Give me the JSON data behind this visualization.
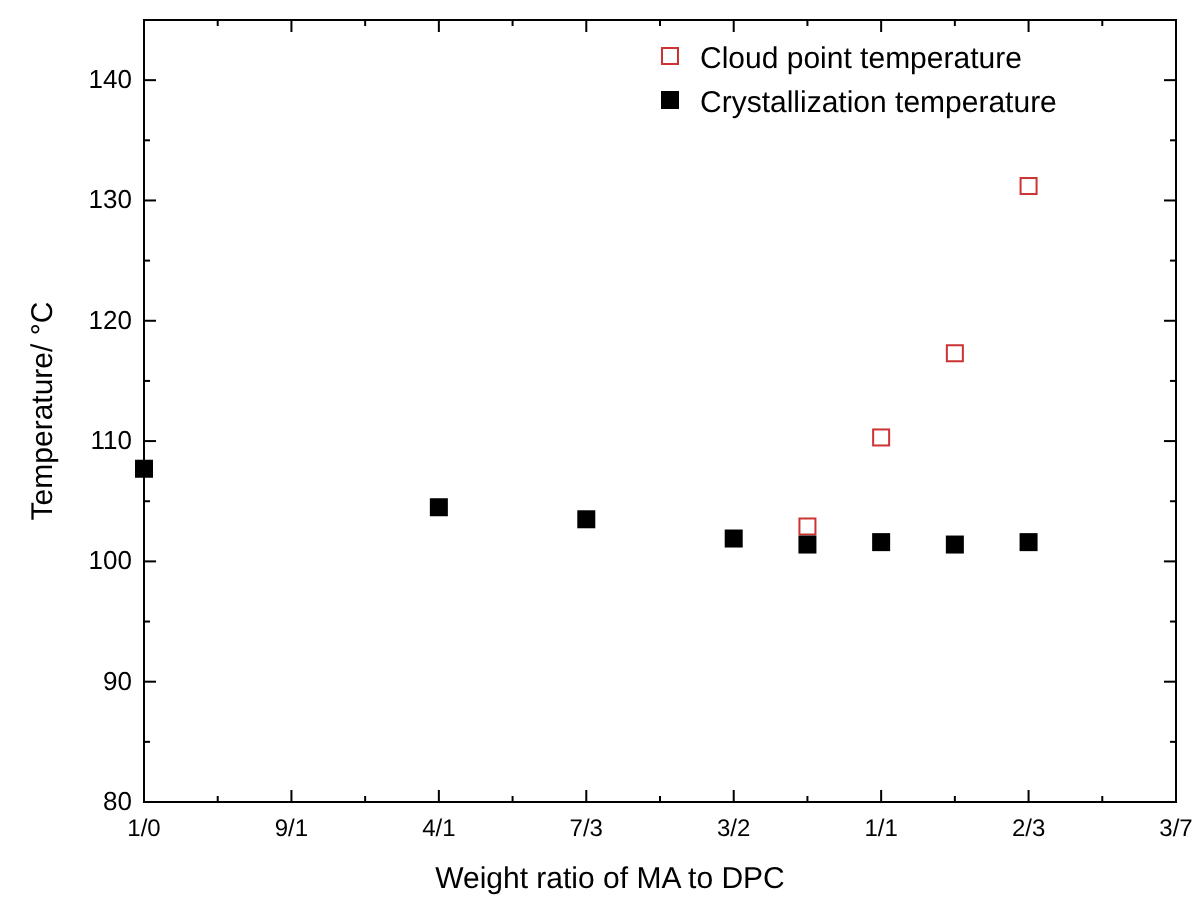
{
  "chart_data": {
    "type": "scatter",
    "xlabel": "Weight ratio of MA to DPC",
    "ylabel": "Temperature/ °C",
    "categories": [
      "1/0",
      null,
      "9/1",
      null,
      "4/1",
      null,
      "7/3",
      null,
      "3/2",
      null,
      "1/1",
      null,
      "2/3",
      null,
      "3/7"
    ],
    "ylim": [
      80,
      145
    ],
    "yticks": [
      80,
      90,
      100,
      110,
      120,
      130,
      140
    ],
    "marker": "square",
    "legend": "top right",
    "grid": false,
    "series": [
      {
        "name": "Cloud point temperature",
        "color": "#cc3333",
        "values": [
          null,
          null,
          null,
          null,
          null,
          null,
          null,
          null,
          null,
          102.9,
          110.3,
          117.3,
          131.2,
          null,
          null
        ]
      },
      {
        "name": "Crystallization temperature",
        "color": "#000000",
        "values": [
          107.7,
          null,
          null,
          null,
          104.5,
          null,
          103.5,
          null,
          101.9,
          101.4,
          101.6,
          101.4,
          101.6,
          null,
          null
        ]
      }
    ]
  }
}
